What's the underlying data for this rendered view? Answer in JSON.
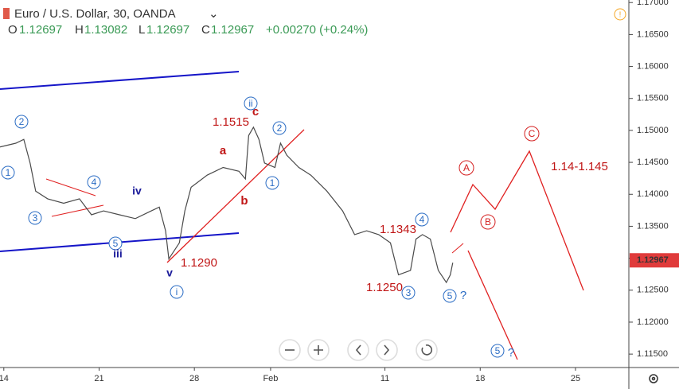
{
  "header": {
    "symbol": "Euro / U.S. Dollar, 30, OANDA",
    "o_label": "O",
    "open": "1.12697",
    "h_label": "H",
    "high": "1.13082",
    "l_label": "L",
    "low": "1.12697",
    "c_label": "C",
    "close": "1.12967",
    "change": "+0.00270 (+0.24%)"
  },
  "chart_data": {
    "type": "line",
    "xlim": [
      -0.2,
      32.8
    ],
    "ylim": [
      1.1129,
      1.1704
    ],
    "xticks": [
      {
        "value": 0,
        "label": "14"
      },
      {
        "value": 5,
        "label": "21"
      },
      {
        "value": 10,
        "label": "28"
      },
      {
        "value": 14,
        "label": "Feb"
      },
      {
        "value": 20,
        "label": "11"
      },
      {
        "value": 25,
        "label": "18"
      },
      {
        "value": 30,
        "label": "25"
      }
    ],
    "yticks": [
      {
        "value": 1.115,
        "label": "1.11500"
      },
      {
        "value": 1.12,
        "label": "1.12000"
      },
      {
        "value": 1.125,
        "label": "1.12500"
      },
      {
        "value": 1.13,
        "label": "1.13000"
      },
      {
        "value": 1.135,
        "label": "1.13500"
      },
      {
        "value": 1.14,
        "label": "1.14000"
      },
      {
        "value": 1.145,
        "label": "1.14500"
      },
      {
        "value": 1.15,
        "label": "1.15000"
      },
      {
        "value": 1.155,
        "label": "1.15500"
      },
      {
        "value": 1.16,
        "label": "1.16000"
      },
      {
        "value": 1.165,
        "label": "1.16500"
      },
      {
        "value": 1.17,
        "label": "1.17000"
      }
    ],
    "current_price": {
      "value": 1.12967,
      "label": "1.12967"
    },
    "series": [
      {
        "color": "#4a4a4a",
        "x": [
          -0.2,
          0.63,
          1.05,
          1.38,
          1.67,
          2.3,
          3.14,
          3.97,
          4.6,
          5.23,
          6.07,
          6.9,
          7.74,
          8.16,
          8.49,
          8.66,
          9.21,
          9.5,
          9.83,
          10.67,
          11.51,
          12.34,
          12.68,
          12.85,
          13.1,
          13.39,
          13.68,
          14.23,
          14.52,
          14.85,
          15.48,
          16.11,
          16.95,
          17.78,
          18.41,
          19.04,
          19.67,
          20.29,
          20.71,
          21.34,
          21.63,
          21.97,
          22.38,
          22.8,
          23.22,
          23.43,
          23.56
        ],
        "values": [
          1.1474,
          1.148,
          1.1486,
          1.1449,
          1.1405,
          1.1393,
          1.1386,
          1.1393,
          1.1368,
          1.1374,
          1.1368,
          1.1362,
          1.1374,
          1.138,
          1.1343,
          1.1299,
          1.1324,
          1.1374,
          1.1411,
          1.143,
          1.1442,
          1.1436,
          1.1424,
          1.1492,
          1.1505,
          1.1486,
          1.1449,
          1.1442,
          1.148,
          1.1461,
          1.1442,
          1.143,
          1.1405,
          1.1374,
          1.1337,
          1.1343,
          1.1337,
          1.1324,
          1.1274,
          1.1281,
          1.133,
          1.1337,
          1.133,
          1.1281,
          1.1262,
          1.1274,
          1.1293
        ]
      }
    ],
    "annotations": [
      {
        "text": "2",
        "kind": "circled-blue"
      },
      {
        "text": "1",
        "kind": "circled-blue"
      },
      {
        "text": "3",
        "kind": "circled-blue"
      },
      {
        "text": "4",
        "kind": "circled-blue"
      },
      {
        "text": "5",
        "kind": "circled-blue"
      },
      {
        "text": "ii",
        "kind": "circled-blue"
      },
      {
        "text": "i",
        "kind": "circled-blue"
      },
      {
        "text": "1",
        "kind": "circled-blue"
      },
      {
        "text": "2",
        "kind": "circled-blue"
      },
      {
        "text": "4",
        "kind": "circled-blue"
      },
      {
        "text": "3",
        "kind": "circled-blue"
      },
      {
        "text": "5",
        "kind": "circled-blue"
      },
      {
        "text": "5",
        "kind": "circled-blue"
      },
      {
        "text": "A",
        "kind": "circled-red"
      },
      {
        "text": "B",
        "kind": "circled-red"
      },
      {
        "text": "C",
        "kind": "circled-red"
      },
      {
        "text": "iv",
        "kind": "blue"
      },
      {
        "text": "iii",
        "kind": "blue"
      },
      {
        "text": "v",
        "kind": "blue"
      },
      {
        "text": "?",
        "kind": "blue-light"
      },
      {
        "text": "?",
        "kind": "blue-light"
      },
      {
        "text": "a",
        "kind": "red"
      },
      {
        "text": "b",
        "kind": "red"
      },
      {
        "text": "c",
        "kind": "red"
      },
      {
        "text": "1.1515",
        "kind": "red"
      },
      {
        "text": "1.1290",
        "kind": "red"
      },
      {
        "text": "1.1343",
        "kind": "red"
      },
      {
        "text": "1.1250",
        "kind": "red"
      },
      {
        "text": "1.14-1.145",
        "kind": "red"
      }
    ]
  }
}
